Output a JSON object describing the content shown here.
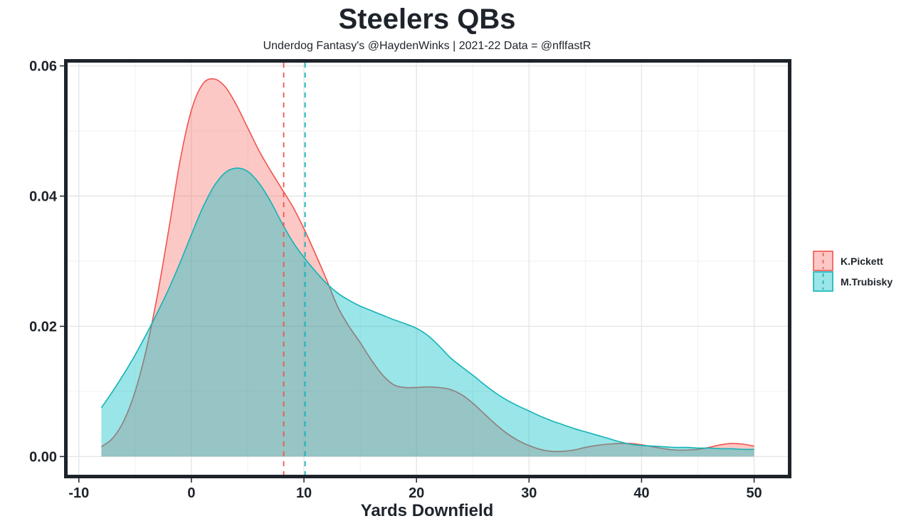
{
  "chart_data": {
    "type": "area",
    "title": "Steelers QBs",
    "subtitle": "Underdog Fantasy's @HaydenWinks | 2021-22 Data = @nflfastR",
    "xlabel": "Yards Downfield",
    "ylabel": "",
    "xlim": [
      -11,
      53
    ],
    "ylim": [
      -0.0028,
      0.0605
    ],
    "x_ticks": [
      -10,
      0,
      10,
      20,
      30,
      40,
      50
    ],
    "x_tick_labels": [
      "-10",
      "0",
      "10",
      "20",
      "30",
      "40",
      "50"
    ],
    "y_ticks": [
      0.0,
      0.02,
      0.04,
      0.06
    ],
    "y_tick_labels": [
      "0.00",
      "0.02",
      "0.04",
      "0.06"
    ],
    "grid": true,
    "legend_position": "right",
    "series": [
      {
        "name": "K.Pickett",
        "color": "#f0544f",
        "fill": "#f8766d",
        "mean_line": 8.2,
        "x": [
          -8,
          -7,
          -6,
          -5,
          -4,
          -3,
          -2,
          -1,
          0,
          1,
          2,
          3,
          4,
          5,
          6,
          7,
          8,
          9,
          10,
          11,
          12,
          13,
          14,
          15,
          16,
          17,
          18,
          19,
          20,
          21,
          22,
          23,
          24,
          25,
          26,
          27,
          28,
          29,
          30,
          31,
          32,
          33,
          34,
          35,
          36,
          37,
          38,
          39,
          40,
          41,
          42,
          43,
          44,
          45,
          46,
          47,
          48,
          49,
          50
        ],
        "y": [
          0.0015,
          0.0028,
          0.0055,
          0.01,
          0.0165,
          0.025,
          0.035,
          0.0455,
          0.0532,
          0.0572,
          0.058,
          0.0568,
          0.054,
          0.0505,
          0.047,
          0.044,
          0.0412,
          0.0384,
          0.035,
          0.0312,
          0.0272,
          0.023,
          0.02,
          0.0175,
          0.0148,
          0.0125,
          0.011,
          0.0106,
          0.0106,
          0.0107,
          0.0106,
          0.0103,
          0.0095,
          0.0082,
          0.0066,
          0.005,
          0.0036,
          0.0025,
          0.0017,
          0.0011,
          0.0008,
          0.0008,
          0.001,
          0.0014,
          0.0017,
          0.0019,
          0.002,
          0.002,
          0.0018,
          0.0015,
          0.0012,
          0.001,
          0.001,
          0.0011,
          0.0014,
          0.0018,
          0.002,
          0.0019,
          0.0016
        ]
      },
      {
        "name": "M.Trubisky",
        "color": "#12b3b8",
        "fill": "#00bfc4",
        "mean_line": 10.1,
        "x": [
          -8,
          -7,
          -6,
          -5,
          -4,
          -3,
          -2,
          -1,
          0,
          1,
          2,
          3,
          4,
          5,
          6,
          7,
          8,
          9,
          10,
          11,
          12,
          13,
          14,
          15,
          16,
          17,
          18,
          19,
          20,
          21,
          22,
          23,
          24,
          25,
          26,
          27,
          28,
          29,
          30,
          31,
          32,
          33,
          34,
          35,
          36,
          37,
          38,
          39,
          40,
          41,
          42,
          43,
          44,
          45,
          46,
          47,
          48,
          49,
          50
        ],
        "y": [
          0.0075,
          0.01,
          0.0127,
          0.0156,
          0.0188,
          0.0222,
          0.0258,
          0.0298,
          0.0341,
          0.0382,
          0.0415,
          0.0436,
          0.0443,
          0.0438,
          0.042,
          0.0393,
          0.036,
          0.033,
          0.0306,
          0.0285,
          0.0266,
          0.0251,
          0.024,
          0.0231,
          0.0224,
          0.0217,
          0.021,
          0.0204,
          0.0197,
          0.0186,
          0.017,
          0.0152,
          0.0138,
          0.0125,
          0.0111,
          0.0098,
          0.0087,
          0.0078,
          0.007,
          0.0062,
          0.0055,
          0.0049,
          0.0043,
          0.0038,
          0.0033,
          0.0028,
          0.0023,
          0.0019,
          0.0017,
          0.0016,
          0.0015,
          0.0014,
          0.0014,
          0.0013,
          0.0013,
          0.0012,
          0.0012,
          0.0011,
          0.0011
        ]
      }
    ]
  }
}
